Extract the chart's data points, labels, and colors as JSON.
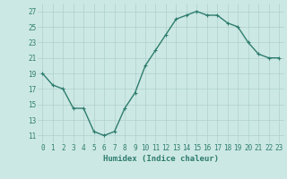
{
  "x": [
    0,
    1,
    2,
    3,
    4,
    5,
    6,
    7,
    8,
    9,
    10,
    11,
    12,
    13,
    14,
    15,
    16,
    17,
    18,
    19,
    20,
    21,
    22,
    23
  ],
  "y": [
    19,
    17.5,
    17,
    14.5,
    14.5,
    11.5,
    11,
    11.5,
    14.5,
    16.5,
    20,
    22,
    24,
    26,
    26.5,
    27,
    26.5,
    26.5,
    25.5,
    25,
    23,
    21.5,
    21,
    21
  ],
  "line_color": "#2e7d6e",
  "marker": "+",
  "bg_color": "#cce8e4",
  "grid_color": "#aed0cc",
  "xlabel": "Humidex (Indice chaleur)",
  "xlim": [
    -0.5,
    23.5
  ],
  "ylim": [
    10,
    28
  ],
  "yticks": [
    11,
    13,
    15,
    17,
    19,
    21,
    23,
    25,
    27
  ],
  "xticks": [
    0,
    1,
    2,
    3,
    4,
    5,
    6,
    7,
    8,
    9,
    10,
    11,
    12,
    13,
    14,
    15,
    16,
    17,
    18,
    19,
    20,
    21,
    22,
    23
  ],
  "xtick_labels": [
    "0",
    "1",
    "2",
    "3",
    "4",
    "5",
    "6",
    "7",
    "8",
    "9",
    "10",
    "11",
    "12",
    "13",
    "14",
    "15",
    "16",
    "17",
    "18",
    "19",
    "20",
    "21",
    "22",
    "23"
  ],
  "marker_size": 3,
  "line_width": 1.0,
  "tick_fontsize": 5.5,
  "label_fontsize": 6.5
}
